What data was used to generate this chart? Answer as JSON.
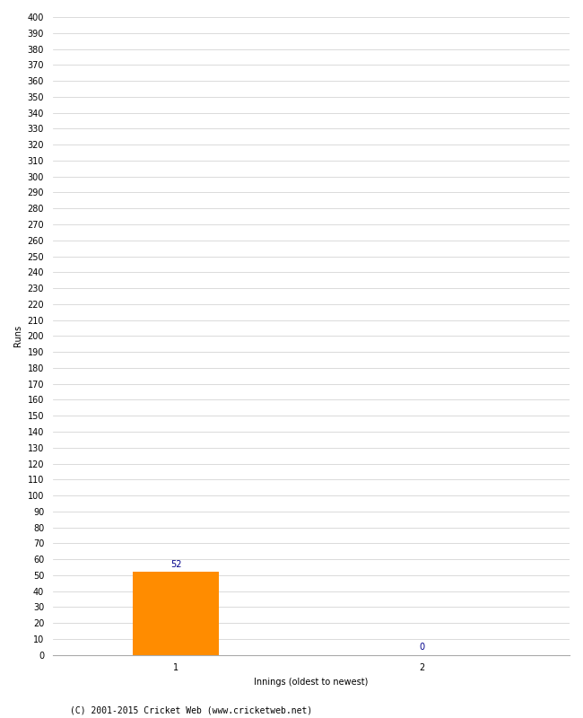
{
  "categories": [
    "1",
    "2"
  ],
  "values": [
    52,
    0
  ],
  "bar_color_0": "#FF8C00",
  "bar_color_1": "#FF8C00",
  "xlabel": "Innings (oldest to newest)",
  "ylabel": "Runs",
  "ylim": [
    0,
    400
  ],
  "ytick_step": 10,
  "background_color": "#ffffff",
  "grid_color": "#cccccc",
  "value_color": "#00008B",
  "footer": "(C) 2001-2015 Cricket Web (www.cricketweb.net)",
  "value_fontsize": 7,
  "axis_fontsize": 7,
  "ylabel_fontsize": 7,
  "xlabel_fontsize": 7,
  "footer_fontsize": 7,
  "bar_width": 0.35
}
